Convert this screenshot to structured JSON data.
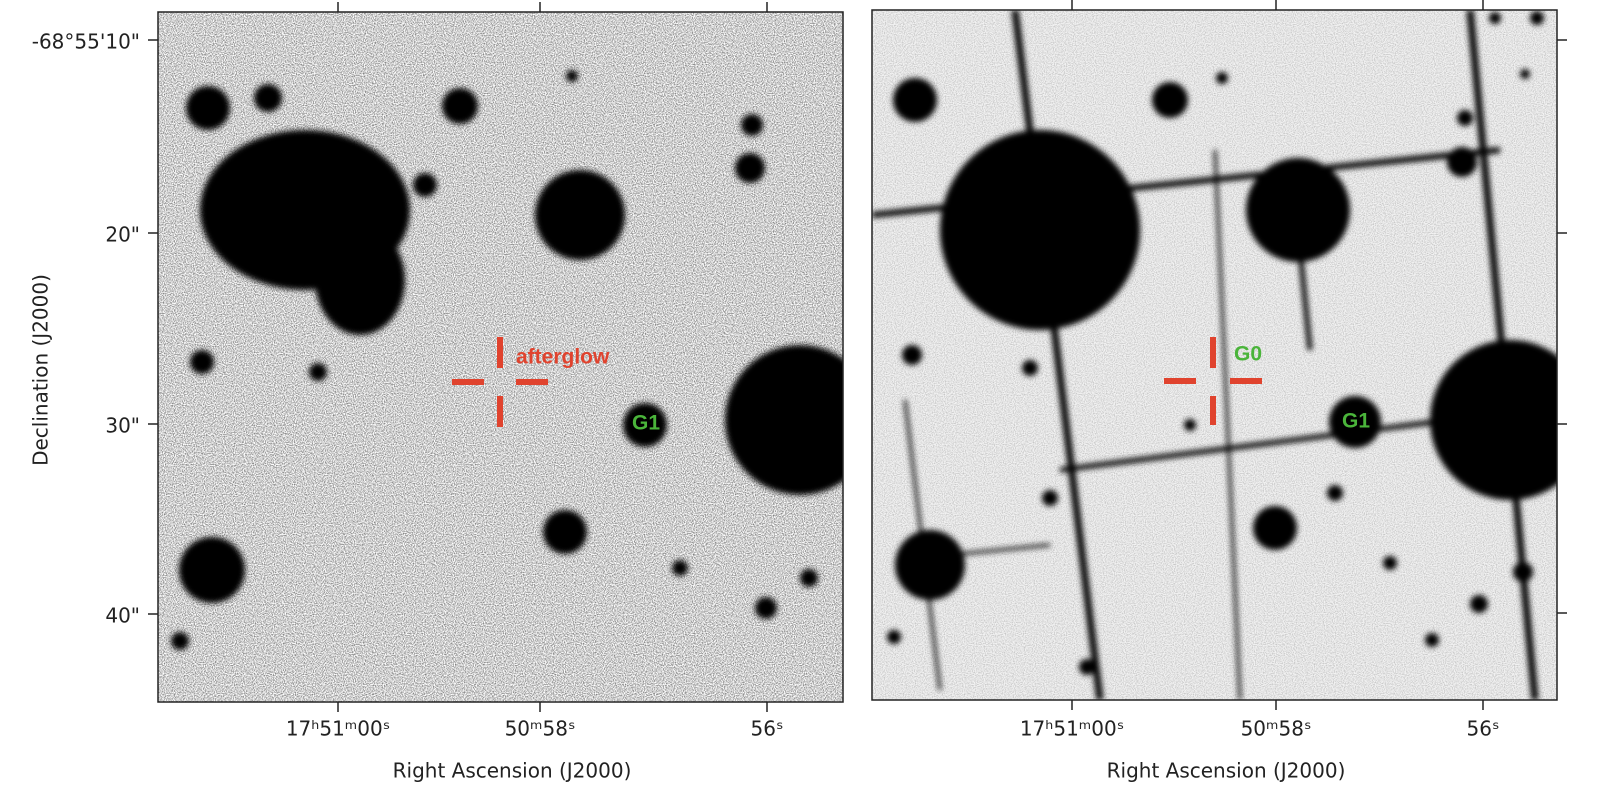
{
  "panels": [
    {
      "xlabel": "Right Ascension (J2000)",
      "ylabel": "Declination (J2000)",
      "xtick_labels": [
        "17ʰ51ᵐ00ˢ",
        "50ᵐ58ˢ",
        "56ˢ"
      ],
      "ytick_labels": [
        "-68°55'10\"",
        "20\"",
        "30\"",
        "40\""
      ],
      "annotations": [
        "afterglow",
        "G1"
      ]
    },
    {
      "xlabel": "Right Ascension (J2000)",
      "xtick_labels": [
        "17ʰ51ᵐ00ˢ",
        "50ᵐ58ˢ",
        "56ˢ"
      ],
      "annotations": [
        "G0",
        "G1"
      ]
    }
  ]
}
